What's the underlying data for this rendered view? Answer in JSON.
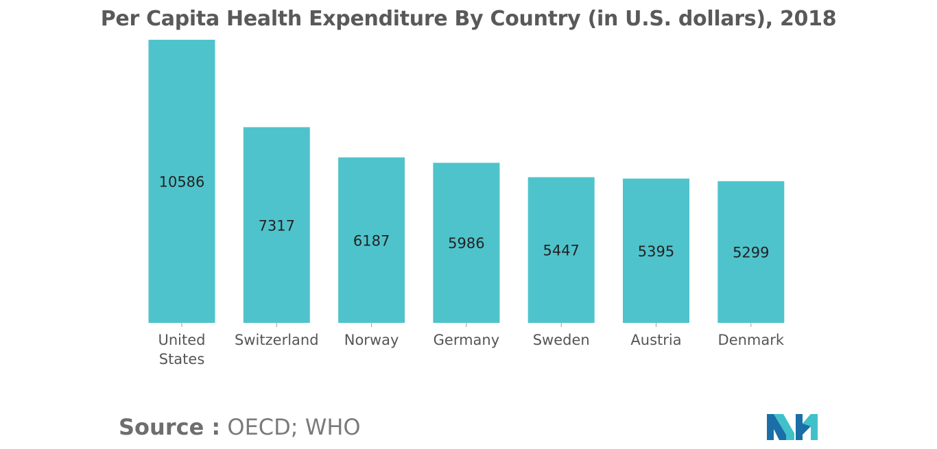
{
  "chart_data": {
    "type": "bar",
    "title": "Per Capita Health Expenditure By Country (in U.S. dollars), 2018",
    "categories": [
      "United States",
      "Switzerland",
      "Norway",
      "Germany",
      "Sweden",
      "Austria",
      "Denmark"
    ],
    "category_lines": [
      [
        "United",
        "States"
      ],
      [
        "Switzerland"
      ],
      [
        "Norway"
      ],
      [
        "Germany"
      ],
      [
        "Sweden"
      ],
      [
        "Austria"
      ],
      [
        "Denmark"
      ]
    ],
    "values": [
      10586,
      7317,
      6187,
      5986,
      5447,
      5395,
      5299
    ],
    "xlabel": "",
    "ylabel": "",
    "ylim": [
      0,
      10586
    ],
    "grid": false,
    "legend": "none",
    "bar_color": "#4fc3cb"
  },
  "source": {
    "label": "Source :",
    "text": "OECD; WHO"
  },
  "logo": {
    "icon": "mordor-intelligence-logo",
    "colors": [
      "#1b6ea8",
      "#3fc1c9"
    ]
  }
}
